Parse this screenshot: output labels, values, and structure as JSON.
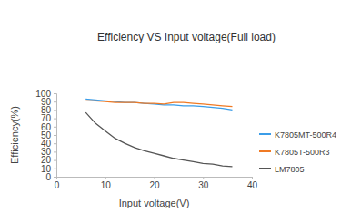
{
  "chart_data": {
    "type": "line",
    "title": "Efficiency VS Input voltage(Full load)",
    "x_label": "Input voltage(V)",
    "y_label": "Efficiency(%)",
    "x": [
      6,
      8,
      10,
      12,
      14,
      16,
      18,
      20,
      22,
      24,
      26,
      28,
      30,
      32,
      34,
      36
    ],
    "series": [
      {
        "name": "K7805MT-500R4",
        "color": "#3b9de8",
        "values": [
          93,
          92,
          91,
          90,
          89,
          89,
          88,
          87,
          86,
          86,
          85,
          85,
          84,
          83,
          82,
          80
        ]
      },
      {
        "name": "K7805T-500R3",
        "color": "#f07a24",
        "values": [
          91,
          91,
          90,
          89,
          89,
          89,
          88,
          88,
          87,
          89,
          89,
          88,
          87,
          86,
          85,
          84
        ]
      },
      {
        "name": "LM7805",
        "color": "#555555",
        "values": [
          77,
          64,
          55,
          46,
          40,
          35,
          31,
          28,
          25,
          22,
          20,
          18,
          16,
          15,
          13,
          12
        ]
      }
    ],
    "xlim": [
      0,
      40
    ],
    "xticks": [
      0,
      10,
      20,
      30,
      40
    ],
    "ylim": [
      0,
      100
    ],
    "yticks": [
      0,
      10,
      20,
      30,
      40,
      50,
      60,
      70,
      80,
      90,
      100
    ],
    "grid": false,
    "legend": "right"
  }
}
